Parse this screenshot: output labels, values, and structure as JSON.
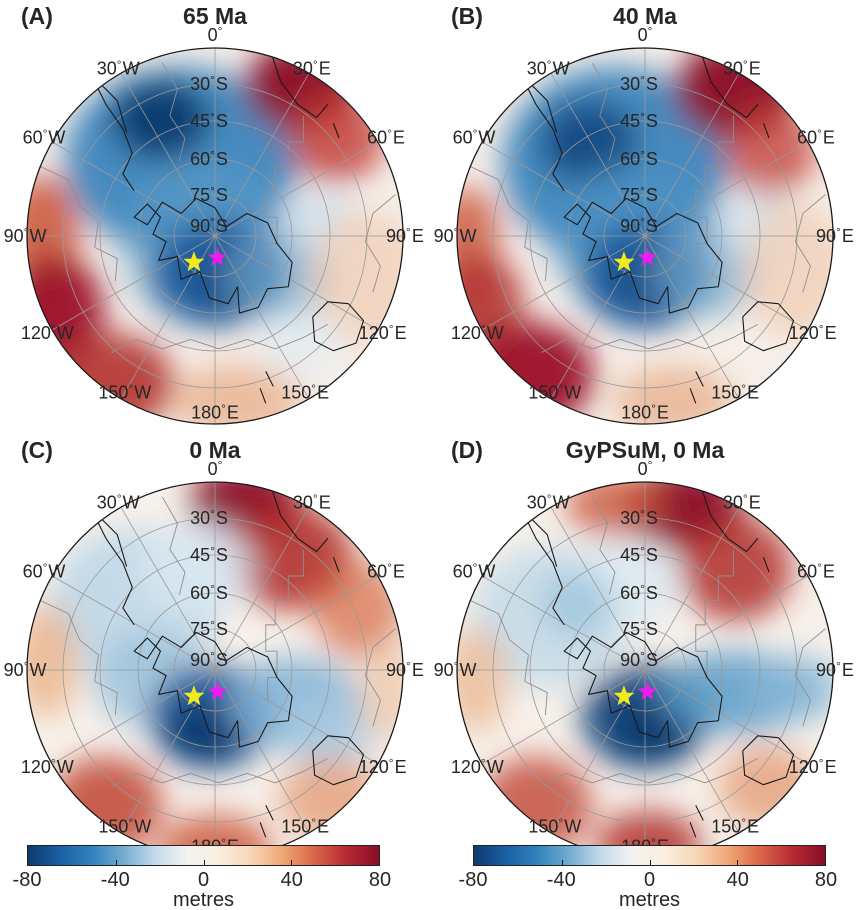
{
  "figure": {
    "background": "#ffffff",
    "text_color": "#262626"
  },
  "panels": [
    {
      "name": "panel-65ma",
      "tag": "(A)",
      "title": "65 Ma",
      "base": "#f6efe9",
      "blobs": [
        [
          -0.18,
          -0.4,
          0.62,
          0.5,
          "#3d85bd",
          0.95
        ],
        [
          -0.05,
          0.05,
          0.45,
          0.45,
          "#5b9cc9",
          0.55
        ],
        [
          -0.29,
          -0.62,
          0.26,
          0.21,
          "#0b3a6e",
          0.95
        ],
        [
          0.02,
          0.2,
          0.36,
          0.28,
          "#1d5a9b",
          0.95
        ],
        [
          0.1,
          0.25,
          0.2,
          0.16,
          "#0e4279",
          0.8
        ],
        [
          0.34,
          0.22,
          0.3,
          0.24,
          "#74a9cf",
          0.7
        ],
        [
          0.56,
          -0.08,
          0.2,
          0.16,
          "#cfe1ed",
          0.85
        ],
        [
          0.46,
          -0.8,
          0.3,
          0.24,
          "#8c0f25",
          0.97
        ],
        [
          0.64,
          -0.52,
          0.26,
          0.24,
          "#c23a30",
          0.8
        ],
        [
          -0.92,
          -0.02,
          0.2,
          0.3,
          "#cc5a3e",
          0.9
        ],
        [
          -0.85,
          0.4,
          0.26,
          0.3,
          "#9c1127",
          0.95
        ],
        [
          -0.55,
          0.78,
          0.33,
          0.26,
          "#b2302c",
          0.9
        ],
        [
          0.12,
          0.88,
          0.34,
          0.2,
          "#e59d6e",
          0.6
        ],
        [
          0.8,
          0.22,
          0.3,
          0.36,
          "#f0cdb4",
          0.75
        ],
        [
          0.45,
          0.55,
          0.22,
          0.18,
          "#dcebf3",
          0.6
        ]
      ]
    },
    {
      "name": "panel-40ma",
      "tag": "(B)",
      "title": "40 Ma",
      "base": "#f6efe9",
      "blobs": [
        [
          -0.16,
          -0.38,
          0.6,
          0.52,
          "#3d85bd",
          0.95
        ],
        [
          -0.3,
          -0.5,
          0.26,
          0.22,
          "#12477f",
          0.9
        ],
        [
          -0.05,
          0.02,
          0.45,
          0.42,
          "#4f94c4",
          0.6
        ],
        [
          0.0,
          0.22,
          0.34,
          0.28,
          "#1d5a9b",
          0.95
        ],
        [
          0.05,
          0.2,
          0.18,
          0.15,
          "#0e4279",
          0.8
        ],
        [
          0.32,
          0.18,
          0.3,
          0.25,
          "#74a9cf",
          0.7
        ],
        [
          0.6,
          -0.06,
          0.22,
          0.18,
          "#d5e5ef",
          0.85
        ],
        [
          0.48,
          -0.78,
          0.32,
          0.26,
          "#8c0f25",
          0.97
        ],
        [
          0.66,
          -0.46,
          0.25,
          0.25,
          "#c23a30",
          0.75
        ],
        [
          -0.95,
          0.02,
          0.18,
          0.28,
          "#cc5a3e",
          0.85
        ],
        [
          -0.88,
          0.36,
          0.23,
          0.26,
          "#b2302c",
          0.9
        ],
        [
          -0.6,
          0.74,
          0.33,
          0.28,
          "#9c1127",
          0.95
        ],
        [
          0.15,
          0.88,
          0.32,
          0.19,
          "#e59d6e",
          0.6
        ],
        [
          0.8,
          0.18,
          0.28,
          0.36,
          "#f0cdb4",
          0.75
        ]
      ]
    },
    {
      "name": "panel-0ma",
      "tag": "(C)",
      "title": "0 Ma",
      "base": "#f7f1ea",
      "blobs": [
        [
          0.16,
          -0.88,
          0.3,
          0.21,
          "#8c0f25",
          0.97
        ],
        [
          0.4,
          -0.6,
          0.33,
          0.28,
          "#b2302c",
          0.9
        ],
        [
          0.76,
          -0.32,
          0.24,
          0.26,
          "#d56a45",
          0.7
        ],
        [
          -0.42,
          -0.35,
          0.46,
          0.4,
          "#c2d9e8",
          0.95
        ],
        [
          -0.1,
          -0.55,
          0.3,
          0.26,
          "#d8e8f1",
          0.85
        ],
        [
          -0.35,
          0.05,
          0.3,
          0.26,
          "#9dc4dd",
          0.85
        ],
        [
          -0.02,
          0.25,
          0.33,
          0.28,
          "#1d5a9b",
          0.95
        ],
        [
          -0.05,
          0.33,
          0.21,
          0.16,
          "#0b3a6e",
          0.95
        ],
        [
          0.42,
          0.18,
          0.36,
          0.25,
          "#7fb2d6",
          0.85
        ],
        [
          0.6,
          0.33,
          0.26,
          0.2,
          "#a9cbe1",
          0.75
        ],
        [
          -0.9,
          -0.05,
          0.18,
          0.3,
          "#e8a97c",
          0.7
        ],
        [
          -0.58,
          0.72,
          0.3,
          0.26,
          "#c04434",
          0.85
        ],
        [
          0.0,
          0.95,
          0.3,
          0.18,
          "#cc5a3e",
          0.85
        ],
        [
          0.62,
          0.68,
          0.28,
          0.22,
          "#e2926a",
          0.7
        ],
        [
          0.92,
          0.12,
          0.16,
          0.26,
          "#eec3a4",
          0.7
        ]
      ]
    },
    {
      "name": "panel-gypsum-0ma",
      "tag": "(D)",
      "title": "GyPSuM, 0 Ma",
      "base": "#f7f1ea",
      "blobs": [
        [
          0.2,
          -0.86,
          0.32,
          0.22,
          "#8c0f25",
          0.97
        ],
        [
          0.48,
          -0.54,
          0.3,
          0.28,
          "#b2302c",
          0.85
        ],
        [
          -0.16,
          -0.88,
          0.26,
          0.18,
          "#cc5a3e",
          0.8
        ],
        [
          -0.5,
          -0.28,
          0.42,
          0.38,
          "#c8dde9",
          0.95
        ],
        [
          -0.1,
          -0.46,
          0.28,
          0.25,
          "#dcebf2",
          0.85
        ],
        [
          -0.36,
          -0.35,
          0.2,
          0.18,
          "#9dc4dd",
          0.8
        ],
        [
          0.0,
          0.25,
          0.34,
          0.28,
          "#16497f",
          0.95
        ],
        [
          0.04,
          0.31,
          0.2,
          0.16,
          "#0b3a6e",
          0.95
        ],
        [
          0.48,
          0.12,
          0.42,
          0.22,
          "#5b9cc9",
          0.85
        ],
        [
          0.8,
          0.1,
          0.24,
          0.18,
          "#8ab8d8",
          0.8
        ],
        [
          -0.9,
          0.05,
          0.18,
          0.28,
          "#eab288",
          0.7
        ],
        [
          -0.58,
          0.72,
          0.3,
          0.26,
          "#c04434",
          0.8
        ],
        [
          0.02,
          0.93,
          0.28,
          0.18,
          "#b2302c",
          0.85
        ],
        [
          0.65,
          0.62,
          0.26,
          0.22,
          "#e2926a",
          0.7
        ]
      ]
    }
  ],
  "map": {
    "lon_labels": [
      {
        "value": "0",
        "dir": ""
      },
      {
        "value": "30",
        "dir": "E"
      },
      {
        "value": "60",
        "dir": "E"
      },
      {
        "value": "90",
        "dir": "E"
      },
      {
        "value": "120",
        "dir": "E"
      },
      {
        "value": "150",
        "dir": "E"
      },
      {
        "value": "180",
        "dir": "E"
      },
      {
        "value": "150",
        "dir": "W"
      },
      {
        "value": "120",
        "dir": "W"
      },
      {
        "value": "90",
        "dir": "W"
      },
      {
        "value": "60",
        "dir": "W"
      },
      {
        "value": "30",
        "dir": "W"
      }
    ],
    "lat_labels": [
      {
        "value": "30",
        "dir": "S"
      },
      {
        "value": "45",
        "dir": "S"
      },
      {
        "value": "60",
        "dir": "S"
      },
      {
        "value": "75",
        "dir": "S"
      },
      {
        "value": "90",
        "dir": "S"
      }
    ],
    "markers": [
      {
        "name": "yellow-star",
        "color": "#f2ea1c",
        "u": -0.112,
        "v": 0.14,
        "size": 11
      },
      {
        "name": "magenta-star",
        "color": "#ee1cee",
        "u": 0.013,
        "v": 0.116,
        "size": 10
      }
    ],
    "graticule_color": "#999999",
    "boundary_color": "#1a1a1a",
    "coast_color": "#1a1a1a",
    "plate_color": "#8f8f8f"
  },
  "colorbar": {
    "ticks": [
      "-80",
      "-40",
      "0",
      "40",
      "80"
    ],
    "label": "metres",
    "stops": [
      "#0d3b6e",
      "#1a5fa4",
      "#3182bd",
      "#74add1",
      "#c6dcec",
      "#f3f3f0",
      "#faeede",
      "#f7d6b6",
      "#efa673",
      "#d96449",
      "#b42a33",
      "#8a0c25"
    ]
  }
}
